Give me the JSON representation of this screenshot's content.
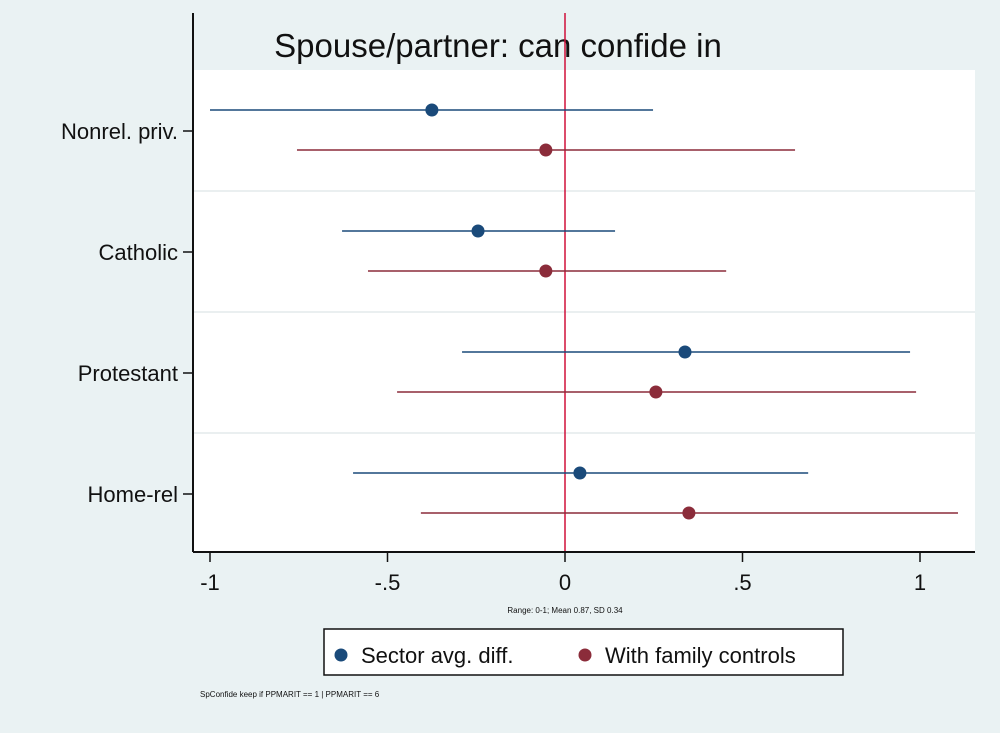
{
  "chart_data": {
    "type": "scatter",
    "subtype": "coefficient-plot-with-confidence-intervals",
    "title": "Spouse/partner: can confide in",
    "xlabel": "Range: 0-1; Mean 0.87, SD 0.34",
    "note": "SpConfide keep if PPMARIT == 1 | PPMARIT == 6",
    "xlim": [
      -1.05,
      1.105
    ],
    "xticks": [
      -1,
      -0.5,
      0,
      0.5,
      1
    ],
    "xtick_labels": [
      "-1",
      "-.5",
      "0",
      ".5",
      "1"
    ],
    "reference_line": 0,
    "categories": [
      "Nonrel. priv.",
      "Catholic",
      "Protestant",
      "Home-rel"
    ],
    "legend_position": "bottom",
    "series": [
      {
        "name": "Sector avg. diff.",
        "color": "#1a4a7a",
        "values": [
          -0.375,
          -0.245,
          0.338,
          0.042
        ],
        "ci_low": [
          -1.0,
          -0.628,
          -0.29,
          -0.597
        ],
        "ci_high": [
          0.248,
          0.141,
          0.972,
          0.685
        ]
      },
      {
        "name": "With family controls",
        "color": "#8b2c3a",
        "values": [
          -0.054,
          -0.054,
          0.256,
          0.349
        ],
        "ci_low": [
          -0.755,
          -0.555,
          -0.473,
          -0.406
        ],
        "ci_high": [
          0.648,
          0.454,
          0.989,
          1.107
        ]
      }
    ],
    "ref_line_color": "#d0103a"
  }
}
